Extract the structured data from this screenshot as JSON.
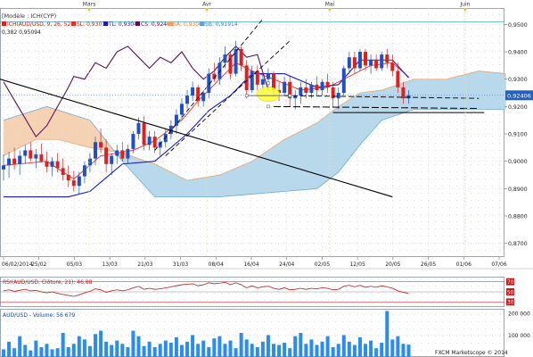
{
  "header": {
    "model_label": "[Modèle : ICH(CYP)",
    "indicator_title": "ICH(AUD/USD, 9, 26, 52)",
    "sl": "SL: 0,93079",
    "tl": "TL: 0,93047",
    "cs": "CS: 0,92406",
    "sa": "SA: 0,93063",
    "sb": "SB: 0,91914",
    "fib_label": "0,382 0,95094"
  },
  "month_labels": [
    "Mars",
    "Avr",
    "Mai",
    "Juin"
  ],
  "price_label": "0,92406",
  "rsi_title": "RSI(AUD/USD, Clôture, 21): 46,88",
  "volume_title": "AUD/USD - Volume: 56 679",
  "copyright": "FXCM Marketscope © 2014",
  "colors": {
    "up_candle": "#2050c8",
    "down_candle": "#e02020",
    "tenkan": "#e03020",
    "kijun": "#1a1ac0",
    "chikou": "#5a1050",
    "cloud_bull": "#b8d8ec",
    "cloud_bear": "#f6d2b4",
    "volume": "#2a8cf0",
    "highlight": "#ffff30"
  },
  "chart_data": [
    {
      "type": "candlestick",
      "title": "ICH(AUD/USD, 9, 26, 52)",
      "x_labels": [
        "06/02/2014",
        "25/02",
        "05/03",
        "13/03",
        "21/03",
        "31/03",
        "08/04",
        "16/04",
        "24/04",
        "02/05",
        "12/05",
        "20/05",
        "26/05",
        "01/06",
        "07/06"
      ],
      "y_ticks": [
        "0,9500",
        "0,9400",
        "0,9300",
        "0,9200",
        "0,9100",
        "0,9000",
        "0,8900",
        "0,8800",
        "0,8700"
      ],
      "ylim": [
        0.865,
        0.956
      ],
      "candles": [
        {
          "o": 0.897,
          "h": 0.9025,
          "l": 0.893,
          "c": 0.8985
        },
        {
          "o": 0.8985,
          "h": 0.9035,
          "l": 0.894,
          "c": 0.901
        },
        {
          "o": 0.901,
          "h": 0.905,
          "l": 0.897,
          "c": 0.899
        },
        {
          "o": 0.899,
          "h": 0.904,
          "l": 0.895,
          "c": 0.902
        },
        {
          "o": 0.902,
          "h": 0.906,
          "l": 0.899,
          "c": 0.904
        },
        {
          "o": 0.904,
          "h": 0.907,
          "l": 0.9,
          "c": 0.901
        },
        {
          "o": 0.901,
          "h": 0.9045,
          "l": 0.8975,
          "c": 0.9025
        },
        {
          "o": 0.9025,
          "h": 0.9065,
          "l": 0.8995,
          "c": 0.9
        },
        {
          "o": 0.9,
          "h": 0.9035,
          "l": 0.896,
          "c": 0.898
        },
        {
          "o": 0.898,
          "h": 0.9015,
          "l": 0.8945,
          "c": 0.9
        },
        {
          "o": 0.9,
          "h": 0.903,
          "l": 0.896,
          "c": 0.8975
        },
        {
          "o": 0.8975,
          "h": 0.901,
          "l": 0.893,
          "c": 0.895
        },
        {
          "o": 0.895,
          "h": 0.8985,
          "l": 0.8905,
          "c": 0.893
        },
        {
          "o": 0.893,
          "h": 0.8965,
          "l": 0.889,
          "c": 0.891
        },
        {
          "o": 0.891,
          "h": 0.896,
          "l": 0.888,
          "c": 0.8945
        },
        {
          "o": 0.8945,
          "h": 0.9,
          "l": 0.892,
          "c": 0.8985
        },
        {
          "o": 0.8985,
          "h": 0.903,
          "l": 0.896,
          "c": 0.901
        },
        {
          "o": 0.901,
          "h": 0.909,
          "l": 0.8985,
          "c": 0.907
        },
        {
          "o": 0.907,
          "h": 0.912,
          "l": 0.903,
          "c": 0.905
        },
        {
          "o": 0.905,
          "h": 0.908,
          "l": 0.896,
          "c": 0.899
        },
        {
          "o": 0.899,
          "h": 0.903,
          "l": 0.895,
          "c": 0.902
        },
        {
          "o": 0.902,
          "h": 0.906,
          "l": 0.899,
          "c": 0.904
        },
        {
          "o": 0.904,
          "h": 0.907,
          "l": 0.9,
          "c": 0.901
        },
        {
          "o": 0.901,
          "h": 0.906,
          "l": 0.899,
          "c": 0.9045
        },
        {
          "o": 0.9045,
          "h": 0.911,
          "l": 0.903,
          "c": 0.91
        },
        {
          "o": 0.91,
          "h": 0.916,
          "l": 0.908,
          "c": 0.914
        },
        {
          "o": 0.914,
          "h": 0.9165,
          "l": 0.904,
          "c": 0.906
        },
        {
          "o": 0.906,
          "h": 0.911,
          "l": 0.904,
          "c": 0.909
        },
        {
          "o": 0.909,
          "h": 0.911,
          "l": 0.903,
          "c": 0.905
        },
        {
          "o": 0.905,
          "h": 0.908,
          "l": 0.902,
          "c": 0.907
        },
        {
          "o": 0.907,
          "h": 0.912,
          "l": 0.905,
          "c": 0.91
        },
        {
          "o": 0.91,
          "h": 0.915,
          "l": 0.908,
          "c": 0.913
        },
        {
          "o": 0.913,
          "h": 0.919,
          "l": 0.91,
          "c": 0.917
        },
        {
          "o": 0.917,
          "h": 0.923,
          "l": 0.915,
          "c": 0.921
        },
        {
          "o": 0.921,
          "h": 0.926,
          "l": 0.919,
          "c": 0.924
        },
        {
          "o": 0.924,
          "h": 0.929,
          "l": 0.922,
          "c": 0.927
        },
        {
          "o": 0.927,
          "h": 0.928,
          "l": 0.92,
          "c": 0.922
        },
        {
          "o": 0.922,
          "h": 0.926,
          "l": 0.92,
          "c": 0.925
        },
        {
          "o": 0.925,
          "h": 0.934,
          "l": 0.923,
          "c": 0.932
        },
        {
          "o": 0.932,
          "h": 0.936,
          "l": 0.929,
          "c": 0.93
        },
        {
          "o": 0.93,
          "h": 0.938,
          "l": 0.928,
          "c": 0.936
        },
        {
          "o": 0.936,
          "h": 0.942,
          "l": 0.934,
          "c": 0.939
        },
        {
          "o": 0.939,
          "h": 0.94,
          "l": 0.93,
          "c": 0.932
        },
        {
          "o": 0.932,
          "h": 0.944,
          "l": 0.931,
          "c": 0.941
        },
        {
          "o": 0.941,
          "h": 0.942,
          "l": 0.933,
          "c": 0.935
        },
        {
          "o": 0.935,
          "h": 0.937,
          "l": 0.923,
          "c": 0.926
        },
        {
          "o": 0.926,
          "h": 0.935,
          "l": 0.925,
          "c": 0.933
        },
        {
          "o": 0.933,
          "h": 0.935,
          "l": 0.926,
          "c": 0.928
        },
        {
          "o": 0.928,
          "h": 0.932,
          "l": 0.925,
          "c": 0.93
        },
        {
          "o": 0.93,
          "h": 0.934,
          "l": 0.927,
          "c": 0.932
        },
        {
          "o": 0.932,
          "h": 0.933,
          "l": 0.924,
          "c": 0.926
        },
        {
          "o": 0.926,
          "h": 0.929,
          "l": 0.922,
          "c": 0.925
        },
        {
          "o": 0.925,
          "h": 0.931,
          "l": 0.924,
          "c": 0.929
        },
        {
          "o": 0.929,
          "h": 0.931,
          "l": 0.92,
          "c": 0.923
        },
        {
          "o": 0.923,
          "h": 0.926,
          "l": 0.919,
          "c": 0.924
        },
        {
          "o": 0.924,
          "h": 0.929,
          "l": 0.921,
          "c": 0.927
        },
        {
          "o": 0.927,
          "h": 0.93,
          "l": 0.923,
          "c": 0.925
        },
        {
          "o": 0.925,
          "h": 0.929,
          "l": 0.923,
          "c": 0.928
        },
        {
          "o": 0.928,
          "h": 0.931,
          "l": 0.924,
          "c": 0.926
        },
        {
          "o": 0.926,
          "h": 0.93,
          "l": 0.924,
          "c": 0.929
        },
        {
          "o": 0.929,
          "h": 0.932,
          "l": 0.925,
          "c": 0.927
        },
        {
          "o": 0.927,
          "h": 0.929,
          "l": 0.92,
          "c": 0.923
        },
        {
          "o": 0.923,
          "h": 0.927,
          "l": 0.919,
          "c": 0.925
        },
        {
          "o": 0.925,
          "h": 0.935,
          "l": 0.924,
          "c": 0.934
        },
        {
          "o": 0.934,
          "h": 0.94,
          "l": 0.932,
          "c": 0.938
        },
        {
          "o": 0.938,
          "h": 0.94,
          "l": 0.932,
          "c": 0.934
        },
        {
          "o": 0.934,
          "h": 0.941,
          "l": 0.933,
          "c": 0.94
        },
        {
          "o": 0.94,
          "h": 0.941,
          "l": 0.933,
          "c": 0.935
        },
        {
          "o": 0.935,
          "h": 0.939,
          "l": 0.932,
          "c": 0.937
        },
        {
          "o": 0.937,
          "h": 0.939,
          "l": 0.933,
          "c": 0.934
        },
        {
          "o": 0.934,
          "h": 0.94,
          "l": 0.933,
          "c": 0.939
        },
        {
          "o": 0.939,
          "h": 0.941,
          "l": 0.934,
          "c": 0.936
        },
        {
          "o": 0.936,
          "h": 0.939,
          "l": 0.931,
          "c": 0.933
        },
        {
          "o": 0.933,
          "h": 0.936,
          "l": 0.925,
          "c": 0.927
        },
        {
          "o": 0.927,
          "h": 0.929,
          "l": 0.921,
          "c": 0.923
        },
        {
          "o": 0.923,
          "h": 0.926,
          "l": 0.921,
          "c": 0.9241
        }
      ],
      "tenkan": [
        [
          0,
          0.8985
        ],
        [
          8,
          0.9
        ],
        [
          13,
          0.8935
        ],
        [
          18,
          0.902
        ],
        [
          24,
          0.904
        ],
        [
          28,
          0.9075
        ],
        [
          33,
          0.915
        ],
        [
          36,
          0.922
        ],
        [
          40,
          0.93
        ],
        [
          43,
          0.936
        ],
        [
          46,
          0.933
        ],
        [
          50,
          0.93
        ],
        [
          55,
          0.926
        ],
        [
          60,
          0.927
        ],
        [
          64,
          0.931
        ],
        [
          68,
          0.935
        ],
        [
          72,
          0.936
        ],
        [
          75,
          0.9308
        ]
      ],
      "kijun": [
        [
          0,
          0.887
        ],
        [
          12,
          0.887
        ],
        [
          16,
          0.889
        ],
        [
          22,
          0.899
        ],
        [
          28,
          0.9
        ],
        [
          34,
          0.91
        ],
        [
          38,
          0.9185
        ],
        [
          42,
          0.924
        ],
        [
          46,
          0.932
        ],
        [
          52,
          0.932
        ],
        [
          58,
          0.927
        ],
        [
          62,
          0.928
        ],
        [
          66,
          0.937
        ],
        [
          72,
          0.937
        ],
        [
          75,
          0.9305
        ]
      ],
      "chikou": [
        [
          0,
          0.929
        ],
        [
          3,
          0.919
        ],
        [
          6,
          0.909
        ],
        [
          8,
          0.913
        ],
        [
          10,
          0.92
        ],
        [
          12,
          0.927
        ],
        [
          13,
          0.931
        ],
        [
          15,
          0.93
        ],
        [
          17,
          0.936
        ],
        [
          19,
          0.934
        ],
        [
          21,
          0.94
        ],
        [
          23,
          0.942
        ],
        [
          25,
          0.938
        ],
        [
          27,
          0.934
        ],
        [
          29,
          0.938
        ],
        [
          31,
          0.936
        ],
        [
          33,
          0.94
        ],
        [
          35,
          0.934
        ],
        [
          37,
          0.93
        ],
        [
          39,
          0.933
        ],
        [
          41,
          0.938
        ],
        [
          43,
          0.942
        ],
        [
          45,
          0.938
        ],
        [
          47,
          0.939
        ],
        [
          49,
          0.926
        ]
      ],
      "senkou_a": [
        [
          0,
          0.902
        ],
        [
          6,
          0.908
        ],
        [
          10,
          0.908
        ],
        [
          16,
          0.905
        ],
        [
          22,
          0.903
        ],
        [
          28,
          0.899
        ],
        [
          34,
          0.893
        ],
        [
          40,
          0.895
        ],
        [
          46,
          0.9
        ],
        [
          52,
          0.908
        ],
        [
          58,
          0.914
        ],
        [
          62,
          0.92
        ],
        [
          66,
          0.925
        ],
        [
          70,
          0.926
        ],
        [
          76,
          0.93
        ],
        [
          82,
          0.93
        ],
        [
          88,
          0.933
        ],
        [
          94,
          0.932
        ],
        [
          101,
          0.931
        ]
      ],
      "senkou_b": [
        [
          0,
          0.915
        ],
        [
          8,
          0.92
        ],
        [
          16,
          0.915
        ],
        [
          22,
          0.9
        ],
        [
          28,
          0.887
        ],
        [
          34,
          0.887
        ],
        [
          40,
          0.887
        ],
        [
          46,
          0.888
        ],
        [
          52,
          0.889
        ],
        [
          58,
          0.89
        ],
        [
          62,
          0.896
        ],
        [
          66,
          0.906
        ],
        [
          70,
          0.915
        ],
        [
          76,
          0.919
        ],
        [
          82,
          0.919
        ],
        [
          88,
          0.919
        ],
        [
          94,
          0.919
        ],
        [
          101,
          0.919
        ]
      ],
      "fib_level": 0.95094
    },
    {
      "type": "line",
      "title": "RSI(AUD/USD, Clôture, 21): 46,88",
      "y_ticks": [
        "70",
        "50",
        "30"
      ],
      "ylim": [
        20,
        80
      ],
      "values": [
        52,
        54,
        51,
        53,
        55,
        52,
        53,
        50,
        48,
        50,
        47,
        45,
        43,
        41,
        44,
        48,
        51,
        56,
        54,
        49,
        52,
        54,
        52,
        54,
        58,
        61,
        55,
        57,
        55,
        56,
        58,
        60,
        62,
        64,
        65,
        66,
        62,
        64,
        68,
        66,
        67,
        69,
        64,
        68,
        64,
        58,
        62,
        58,
        60,
        61,
        57,
        55,
        58,
        54,
        55,
        57,
        55,
        57,
        56,
        58,
        57,
        54,
        55,
        61,
        63,
        60,
        63,
        59,
        61,
        59,
        62,
        60,
        57,
        52,
        49,
        46.88
      ]
    },
    {
      "type": "bar",
      "title": "AUD/USD - Volume: 56 679",
      "y_ticks": [
        "200 000",
        "100 000"
      ],
      "ylim": [
        0,
        220000
      ],
      "values": [
        35000,
        70000,
        40000,
        95000,
        55000,
        30000,
        75000,
        45000,
        60000,
        35000,
        40000,
        110000,
        45000,
        60000,
        95000,
        80000,
        50000,
        105000,
        120000,
        70000,
        55000,
        75000,
        60000,
        45000,
        120000,
        95000,
        50000,
        70000,
        45000,
        60000,
        75000,
        65000,
        90000,
        55000,
        70000,
        100000,
        60000,
        75000,
        45000,
        85000,
        95000,
        60000,
        75000,
        40000,
        110000,
        80000,
        60000,
        45000,
        70000,
        100000,
        60000,
        55000,
        65000,
        40000,
        95000,
        110000,
        60000,
        80000,
        55000,
        70000,
        95000,
        45000,
        60000,
        100000,
        70000,
        55000,
        90000,
        60000,
        75000,
        40000,
        65000,
        210000,
        80000,
        95000,
        60000,
        56679
      ]
    }
  ]
}
